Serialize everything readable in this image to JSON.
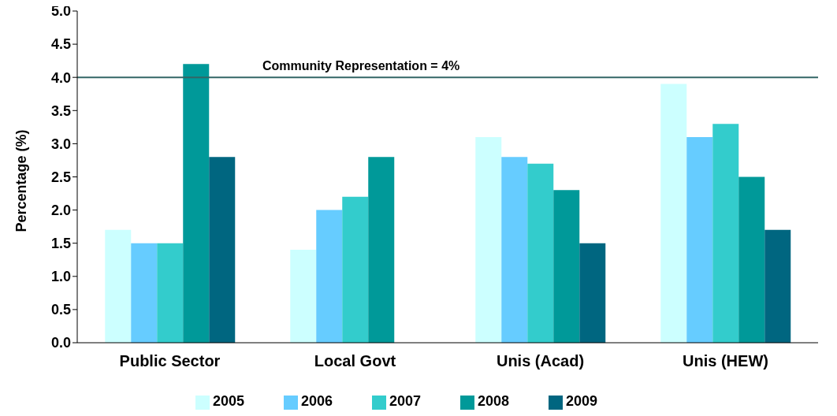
{
  "chart_data": {
    "type": "bar",
    "ylabel": "Percentage (%)",
    "categories": [
      "Public Sector",
      "Local Govt",
      "Unis (Acad)",
      "Unis (HEW)"
    ],
    "series": [
      {
        "name": "2005",
        "color": "#ccffff",
        "values": [
          1.7,
          1.4,
          3.1,
          3.9
        ]
      },
      {
        "name": "2006",
        "color": "#66ccff",
        "values": [
          1.5,
          2.0,
          2.8,
          3.1
        ]
      },
      {
        "name": "2007",
        "color": "#33cccc",
        "values": [
          1.5,
          2.2,
          2.7,
          3.3
        ]
      },
      {
        "name": "2008",
        "color": "#009999",
        "values": [
          4.2,
          2.8,
          2.3,
          2.5
        ]
      },
      {
        "name": "2009",
        "color": "#006680",
        "values": [
          2.8,
          null,
          1.5,
          1.7
        ]
      }
    ],
    "ylim": [
      0,
      5
    ],
    "yticks": [
      {
        "value": 0,
        "label": "0.0"
      },
      {
        "value": 0.5,
        "label": "0.5"
      },
      {
        "value": 1,
        "label": "1.0"
      },
      {
        "value": 1.5,
        "label": "1.5"
      },
      {
        "value": 2,
        "label": "2.0"
      },
      {
        "value": 2.5,
        "label": "2.5"
      },
      {
        "value": 3,
        "label": "3.0"
      },
      {
        "value": 3.5,
        "label": "3.5"
      },
      {
        "value": 4,
        "label": "4.0"
      },
      {
        "value": 4.5,
        "label": "4.5"
      },
      {
        "value": 5,
        "label": "5.0"
      }
    ],
    "ref_lines": [
      {
        "axis": "y",
        "value": 4,
        "label": "Community Representation = 4%",
        "color": "#336666"
      }
    ],
    "grid": false,
    "legend": "bottom"
  }
}
